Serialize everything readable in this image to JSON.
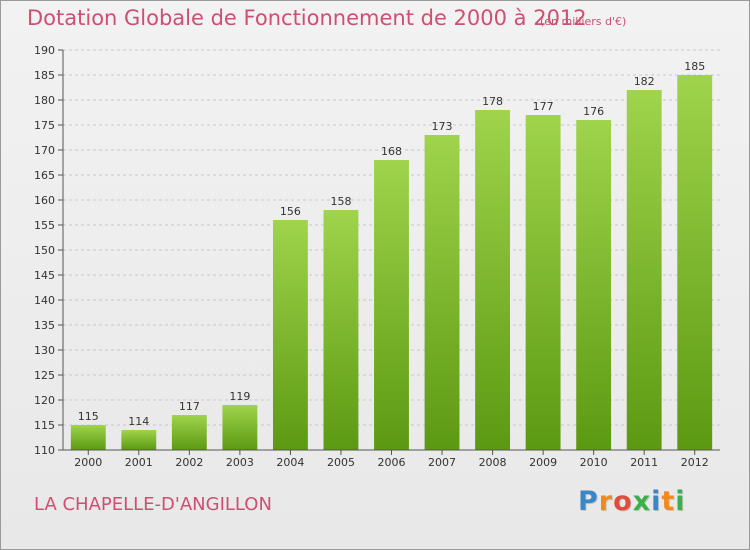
{
  "title": "Dotation Globale de Fonctionnement de 2000 à 2012",
  "unit_note": "(en milliers d'€)",
  "commune": "LA CHAPELLE-D'ANGILLON",
  "logo": {
    "letters": [
      "P",
      "r",
      "o",
      "x",
      "i",
      "t",
      "i"
    ],
    "colors": [
      "#3a87c8",
      "#f08a1c",
      "#e04d3a",
      "#3cae4a",
      "#3a87c8",
      "#f08a1c",
      "#3cae4a"
    ]
  },
  "colors": {
    "title": "#cf4f72",
    "bar_top": "#9fd44c",
    "bar_bottom": "#5c9912",
    "grid": "#c8c8c8"
  },
  "chart_data": {
    "type": "bar",
    "title": "Dotation Globale de Fonctionnement de 2000 à 2012",
    "ylabel": "",
    "xlabel": "",
    "categories": [
      "2000",
      "2001",
      "2002",
      "2003",
      "2004",
      "2005",
      "2006",
      "2007",
      "2008",
      "2009",
      "2010",
      "2011",
      "2012"
    ],
    "values": [
      115,
      114,
      117,
      119,
      156,
      158,
      168,
      173,
      178,
      177,
      176,
      182,
      185
    ],
    "ylim": [
      110,
      190
    ],
    "yticks": [
      110,
      115,
      120,
      125,
      130,
      135,
      140,
      145,
      150,
      155,
      160,
      165,
      170,
      175,
      180,
      185,
      190
    ],
    "grid": true,
    "data_labels": true
  }
}
